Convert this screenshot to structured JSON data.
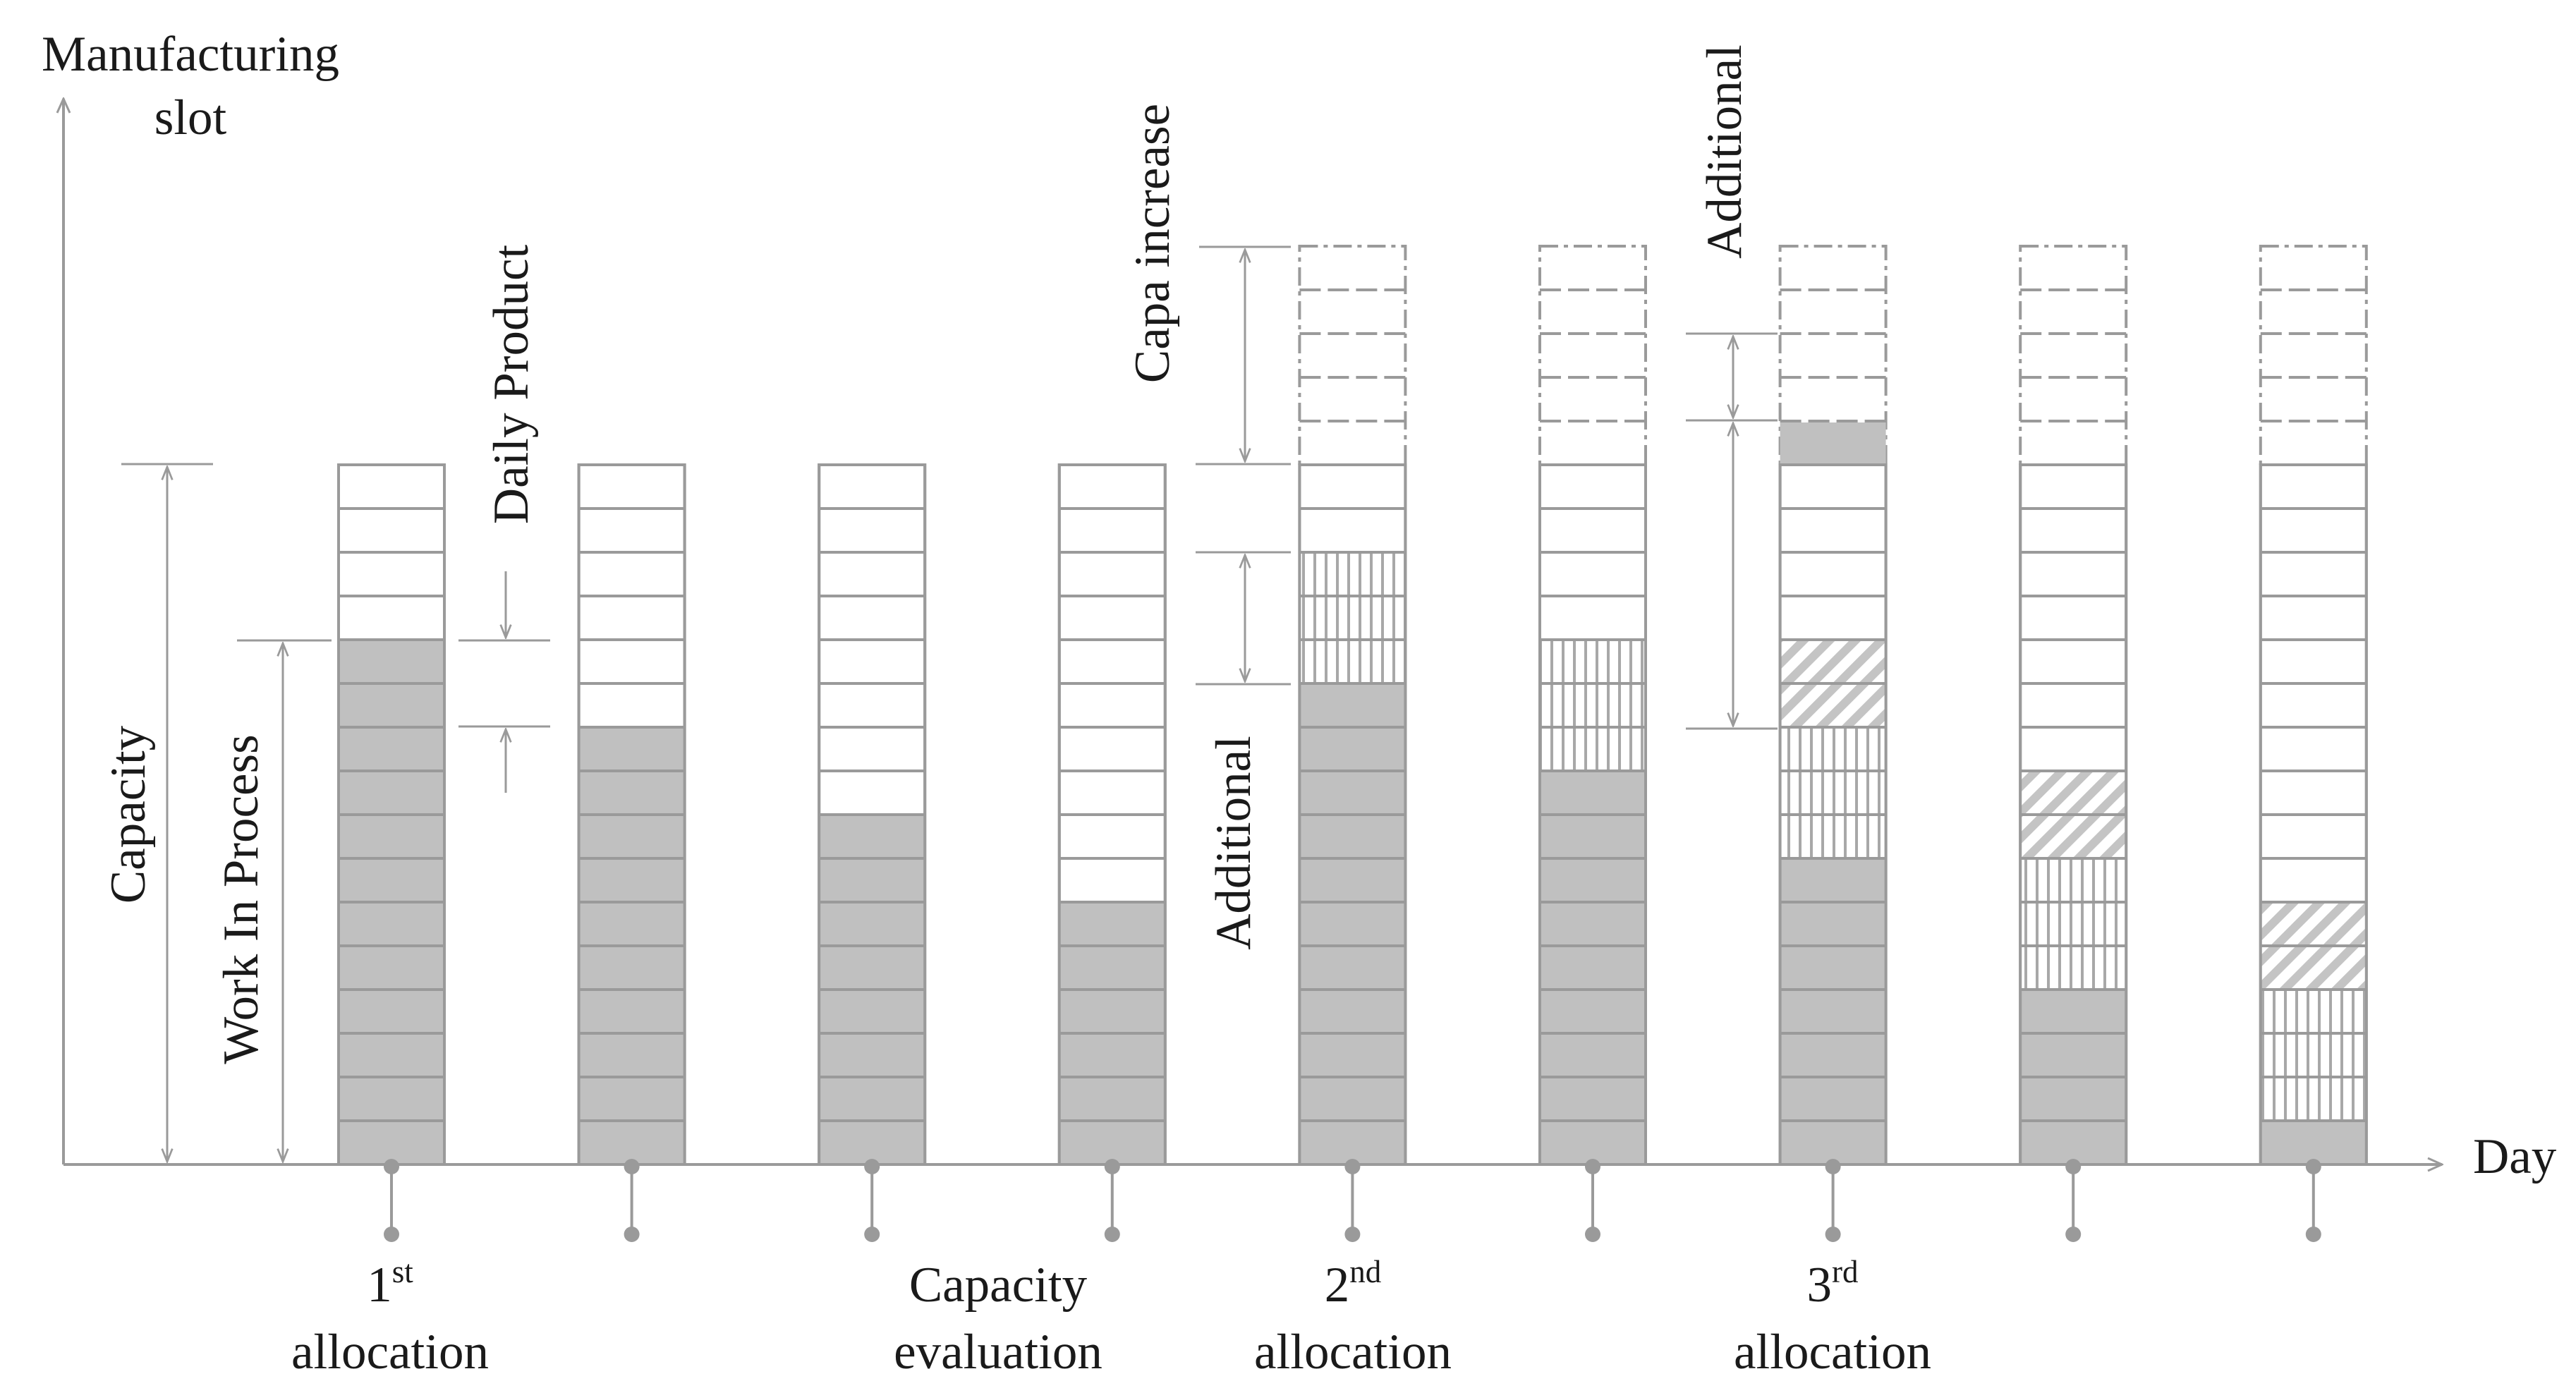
{
  "axes": {
    "y_label_line1": "Manufacturing",
    "y_label_line2": "slot",
    "x_label": "Day"
  },
  "labels": {
    "capacity": "Capacity",
    "work_in_process": "Work In Process",
    "daily_product": "Daily Product",
    "capa_increase": "Capa increase",
    "additional_lower": "Additional",
    "additional_upper": "Additional"
  },
  "events": {
    "first": {
      "num": "1",
      "sup": "st",
      "word": "allocation"
    },
    "capacity_eval": {
      "line1": "Capacity",
      "line2": "evaluation"
    },
    "second": {
      "num": "2",
      "sup": "nd",
      "word": "allocation"
    },
    "third": {
      "num": "3",
      "sup": "rd",
      "word": "allocation"
    }
  },
  "model": {
    "base_capacity_slots": 16,
    "increased_capacity_slots": 21,
    "days": [
      {
        "day": 1,
        "capacity": 16,
        "wip": 12,
        "vhatch": 0,
        "dhatch": 0
      },
      {
        "day": 2,
        "capacity": 16,
        "wip": 10,
        "vhatch": 0,
        "dhatch": 0
      },
      {
        "day": 3,
        "capacity": 16,
        "wip": 8,
        "vhatch": 0,
        "dhatch": 0
      },
      {
        "day": 4,
        "capacity": 16,
        "wip": 6,
        "vhatch": 0,
        "dhatch": 0
      },
      {
        "day": 5,
        "capacity": 21,
        "wip": 11,
        "vhatch": 3,
        "dhatch": 0
      },
      {
        "day": 6,
        "capacity": 21,
        "wip": 9,
        "vhatch": 3,
        "dhatch": 0
      },
      {
        "day": 7,
        "capacity": 21,
        "wip": 7,
        "vhatch": 3,
        "dhatch": 2
      },
      {
        "day": 8,
        "capacity": 21,
        "wip": 4,
        "vhatch": 3,
        "dhatch": 2
      },
      {
        "day": 9,
        "capacity": 21,
        "wip": 1,
        "vhatch": 3,
        "dhatch": 2
      }
    ]
  },
  "colors": {
    "stroke": "#9a9a9a",
    "fill_wip": "#c0c0c0",
    "hatch": "#a8a8a8",
    "text": "#1a1a1a"
  }
}
